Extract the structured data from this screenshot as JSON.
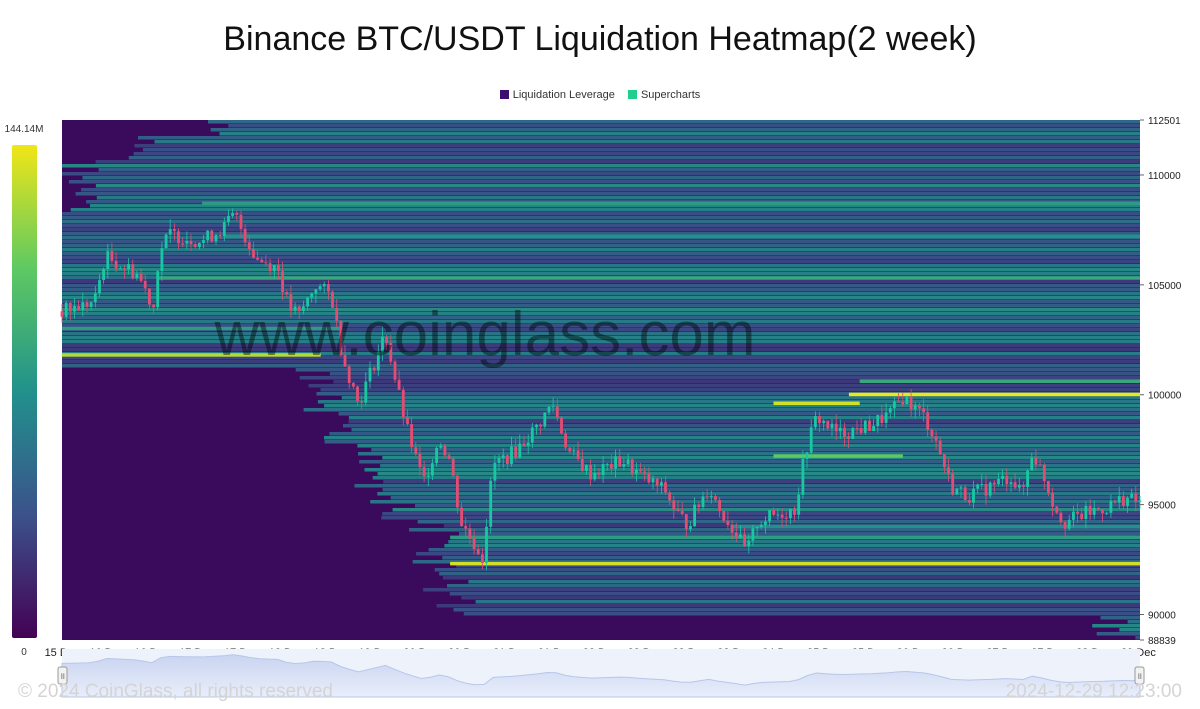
{
  "title": "Binance BTC/USDT Liquidation Heatmap(2 week)",
  "legend": [
    {
      "label": "Liquidation Leverage",
      "color": "#3b0f6f"
    },
    {
      "label": "Supercharts",
      "color": "#1fcf8d"
    }
  ],
  "watermark": "www.coinglass.com",
  "footer": {
    "copyright": "© 2024 CoinGlass, all rights reserved",
    "timestamp": "2024-12-29 12:23:00"
  },
  "colors": {
    "background": "#3a0b5c",
    "candle_up": "#17c9a2",
    "candle_down": "#e64b72",
    "scale_low": "#440154",
    "scale_high": "#f0e617"
  },
  "chart_data": {
    "type": "heatmap",
    "title": "Binance BTC/USDT Liquidation Heatmap(2 week)",
    "x_tick_labels": [
      "15 Dec",
      "16 Dec",
      "16 Dec",
      "17 Dec",
      "17 Dec",
      "18 Dec",
      "18 Dec",
      "19 Dec",
      "20 Dec",
      "20 Dec",
      "21 Dec",
      "21 Dec",
      "22 Dec",
      "22 Dec",
      "23 Dec",
      "23 Dec",
      "24 Dec",
      "25 Dec",
      "25 Dec",
      "26 Dec",
      "26 Dec",
      "27 Dec",
      "27 Dec",
      "28 Dec",
      "29 Dec"
    ],
    "y_tick_labels": [
      "112501",
      "110000",
      "105000",
      "100000",
      "95000",
      "90000",
      "88839"
    ],
    "ylim": [
      88839,
      112501
    ],
    "color_scale": {
      "min_label": "0",
      "max_label": "144.14M",
      "min": 0,
      "max": 144140000
    },
    "price_series": [
      {
        "t": 0,
        "price": 103800
      },
      {
        "t": 0.03,
        "price": 104200
      },
      {
        "t": 0.04,
        "price": 106300
      },
      {
        "t": 0.07,
        "price": 105500
      },
      {
        "t": 0.085,
        "price": 104000
      },
      {
        "t": 0.09,
        "price": 106500
      },
      {
        "t": 0.1,
        "price": 107300
      },
      {
        "t": 0.13,
        "price": 107000
      },
      {
        "t": 0.15,
        "price": 107600
      },
      {
        "t": 0.16,
        "price": 108200
      },
      {
        "t": 0.18,
        "price": 106200
      },
      {
        "t": 0.2,
        "price": 105800
      },
      {
        "t": 0.21,
        "price": 104000
      },
      {
        "t": 0.22,
        "price": 103600
      },
      {
        "t": 0.235,
        "price": 105000
      },
      {
        "t": 0.25,
        "price": 104500
      },
      {
        "t": 0.26,
        "price": 101800
      },
      {
        "t": 0.275,
        "price": 99600
      },
      {
        "t": 0.29,
        "price": 101500
      },
      {
        "t": 0.3,
        "price": 102800
      },
      {
        "t": 0.31,
        "price": 100500
      },
      {
        "t": 0.32,
        "price": 98400
      },
      {
        "t": 0.335,
        "price": 96000
      },
      {
        "t": 0.35,
        "price": 98000
      },
      {
        "t": 0.36,
        "price": 97000
      },
      {
        "t": 0.37,
        "price": 94200
      },
      {
        "t": 0.39,
        "price": 92600
      },
      {
        "t": 0.4,
        "price": 96800
      },
      {
        "t": 0.42,
        "price": 97400
      },
      {
        "t": 0.44,
        "price": 98500
      },
      {
        "t": 0.455,
        "price": 99600
      },
      {
        "t": 0.47,
        "price": 97400
      },
      {
        "t": 0.49,
        "price": 96400
      },
      {
        "t": 0.52,
        "price": 97000
      },
      {
        "t": 0.54,
        "price": 96200
      },
      {
        "t": 0.56,
        "price": 95600
      },
      {
        "t": 0.57,
        "price": 94600
      },
      {
        "t": 0.58,
        "price": 94100
      },
      {
        "t": 0.6,
        "price": 95800
      },
      {
        "t": 0.61,
        "price": 94800
      },
      {
        "t": 0.625,
        "price": 93700
      },
      {
        "t": 0.635,
        "price": 92800
      },
      {
        "t": 0.645,
        "price": 94200
      },
      {
        "t": 0.66,
        "price": 94500
      },
      {
        "t": 0.68,
        "price": 94800
      },
      {
        "t": 0.69,
        "price": 97500
      },
      {
        "t": 0.7,
        "price": 99000
      },
      {
        "t": 0.72,
        "price": 98200
      },
      {
        "t": 0.75,
        "price": 98600
      },
      {
        "t": 0.77,
        "price": 99200
      },
      {
        "t": 0.78,
        "price": 99900
      },
      {
        "t": 0.8,
        "price": 99000
      },
      {
        "t": 0.81,
        "price": 98000
      },
      {
        "t": 0.825,
        "price": 95800
      },
      {
        "t": 0.84,
        "price": 95400
      },
      {
        "t": 0.86,
        "price": 95800
      },
      {
        "t": 0.88,
        "price": 96300
      },
      {
        "t": 0.89,
        "price": 95400
      },
      {
        "t": 0.9,
        "price": 97400
      },
      {
        "t": 0.91,
        "price": 96400
      },
      {
        "t": 0.92,
        "price": 95000
      },
      {
        "t": 0.93,
        "price": 94200
      },
      {
        "t": 0.95,
        "price": 94600
      },
      {
        "t": 0.97,
        "price": 94900
      },
      {
        "t": 0.985,
        "price": 95300
      },
      {
        "t": 1.0,
        "price": 95100
      }
    ],
    "liquidation_levels": [
      {
        "price": 100000,
        "intensity": 1.0,
        "start": 0.73
      },
      {
        "price": 92300,
        "intensity": 0.95,
        "start": 0.36
      },
      {
        "price": 101800,
        "intensity": 0.9,
        "start": 0.0,
        "end": 0.24
      },
      {
        "price": 99600,
        "intensity": 0.95,
        "start": 0.66,
        "end": 0.74
      },
      {
        "price": 100600,
        "intensity": 0.6,
        "start": 0.74
      },
      {
        "price": 97200,
        "intensity": 0.75,
        "start": 0.66,
        "end": 0.78
      },
      {
        "price": 108700,
        "intensity": 0.55,
        "start": 0.13
      },
      {
        "price": 105300,
        "intensity": 0.6,
        "start": 0.09
      },
      {
        "price": 93500,
        "intensity": 0.55,
        "start": 0.36
      },
      {
        "price": 94000,
        "intensity": 0.5,
        "start": 0.62
      },
      {
        "price": 103000,
        "intensity": 0.55,
        "start": 0.0,
        "end": 0.26
      },
      {
        "price": 107200,
        "intensity": 0.5,
        "start": 0.15
      }
    ]
  }
}
